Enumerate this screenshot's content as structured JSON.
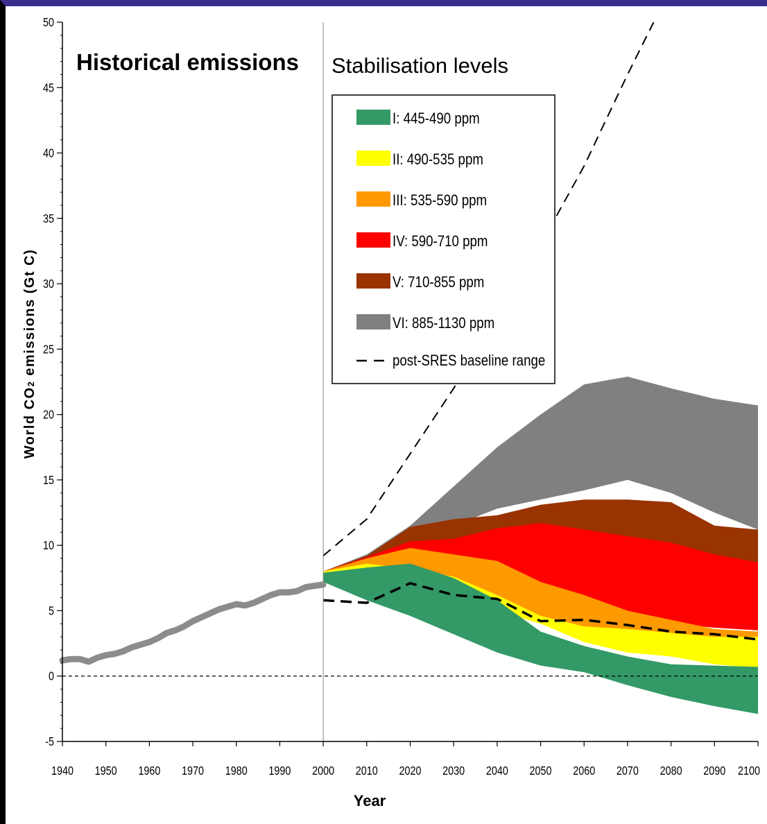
{
  "chart_data": {
    "type": "area",
    "title": "",
    "annotations": [
      "Historical emissions",
      "Stabilisation levels"
    ],
    "xlabel": "Year",
    "ylabel_parts": [
      "World CO",
      "2",
      " emissions (Gt C)"
    ],
    "xlim": [
      1940,
      2100
    ],
    "ylim": [
      -5,
      50
    ],
    "x_ticks": [
      1940,
      1950,
      1960,
      1970,
      1980,
      1990,
      2000,
      2010,
      2020,
      2030,
      2040,
      2050,
      2060,
      2070,
      2080,
      2090,
      2100
    ],
    "y_ticks": [
      -5,
      0,
      5,
      10,
      15,
      20,
      25,
      30,
      35,
      40,
      45,
      50
    ],
    "divider_year": 2000,
    "zero_line": 0,
    "legend_position": "top-center",
    "historical": {
      "name": "",
      "color": "#8c8c8c",
      "x": [
        1940,
        1942,
        1944,
        1946,
        1948,
        1950,
        1952,
        1954,
        1956,
        1958,
        1960,
        1962,
        1964,
        1966,
        1968,
        1970,
        1972,
        1974,
        1976,
        1978,
        1980,
        1982,
        1984,
        1986,
        1988,
        1990,
        1992,
        1994,
        1996,
        1998,
        2000
      ],
      "y": [
        1.2,
        1.3,
        1.3,
        1.1,
        1.4,
        1.6,
        1.7,
        1.9,
        2.2,
        2.4,
        2.6,
        2.9,
        3.3,
        3.5,
        3.8,
        4.2,
        4.5,
        4.8,
        5.1,
        5.3,
        5.5,
        5.4,
        5.6,
        5.9,
        6.2,
        6.4,
        6.4,
        6.5,
        6.8,
        6.9,
        7.0
      ]
    },
    "bands_x": [
      2000,
      2010,
      2020,
      2030,
      2040,
      2050,
      2060,
      2070,
      2080,
      2090,
      2100
    ],
    "series": [
      {
        "name": "VI: 885-1130 ppm",
        "color": "#808080",
        "lower": [
          8.0,
          9.0,
          10.0,
          11.5,
          12.8,
          13.5,
          14.2,
          15.0,
          14.0,
          12.5,
          11.2
        ],
        "upper": [
          8.0,
          9.3,
          11.5,
          14.5,
          17.5,
          20.0,
          22.3,
          22.9,
          22.0,
          21.2,
          20.7
        ]
      },
      {
        "name": "V: 710-855 ppm",
        "color": "#993300",
        "lower": [
          8.0,
          8.9,
          9.8,
          10.2,
          10.6,
          10.8,
          10.9,
          10.5,
          9.8,
          9.0,
          8.5
        ],
        "upper": [
          8.0,
          9.2,
          11.4,
          12.0,
          12.3,
          13.1,
          13.5,
          13.5,
          13.3,
          11.5,
          11.2
        ]
      },
      {
        "name": "IV: 590-710 ppm",
        "color": "#ff0000",
        "lower": [
          7.9,
          8.5,
          8.5,
          7.2,
          6.3,
          5.3,
          4.3,
          4.3,
          4.0,
          3.7,
          3.5
        ],
        "upper": [
          8.0,
          9.1,
          10.3,
          10.5,
          11.3,
          11.7,
          11.2,
          10.7,
          10.2,
          9.3,
          8.7
        ]
      },
      {
        "name": "III: 535-590 ppm",
        "color": "#ff9900",
        "lower": [
          7.7,
          7.6,
          7.3,
          6.2,
          5.5,
          4.3,
          3.6,
          3.4,
          3.2,
          3.0,
          2.9
        ],
        "upper": [
          8.0,
          9.0,
          9.8,
          9.3,
          8.8,
          7.2,
          6.2,
          5.0,
          4.3,
          3.6,
          3.4
        ]
      },
      {
        "name": "II: 490-535 ppm",
        "color": "#ffff00",
        "lower": [
          7.7,
          7.2,
          6.5,
          5.8,
          5.0,
          4.0,
          2.6,
          1.8,
          1.5,
          0.9,
          0.6
        ],
        "upper": [
          8.0,
          8.6,
          8.2,
          7.6,
          6.2,
          4.6,
          3.8,
          3.6,
          3.3,
          3.0,
          3.0
        ]
      },
      {
        "name": "I: 445-490 ppm",
        "color": "#339966",
        "lower": [
          7.2,
          5.8,
          4.6,
          3.2,
          1.8,
          0.8,
          0.3,
          -0.7,
          -1.6,
          -2.3,
          -2.9
        ],
        "upper": [
          7.9,
          8.3,
          8.6,
          7.5,
          5.8,
          3.4,
          2.3,
          1.5,
          0.9,
          0.8,
          0.7
        ]
      }
    ],
    "baseline_range": {
      "name": "post-SRES baseline range",
      "color": "#000000",
      "upper": {
        "x": [
          2000,
          2010,
          2020,
          2030,
          2040,
          2050,
          2060,
          2070,
          2076
        ],
        "y": [
          9.2,
          12.0,
          17.0,
          22.0,
          27.5,
          33.0,
          39.0,
          46.0,
          50.0
        ]
      },
      "lower": {
        "x": [
          2000,
          2010,
          2020,
          2030,
          2040,
          2050,
          2060,
          2070,
          2080,
          2090,
          2100
        ],
        "y": [
          5.8,
          5.6,
          7.1,
          6.2,
          5.9,
          4.2,
          4.3,
          3.9,
          3.4,
          3.2,
          2.8
        ]
      }
    }
  }
}
